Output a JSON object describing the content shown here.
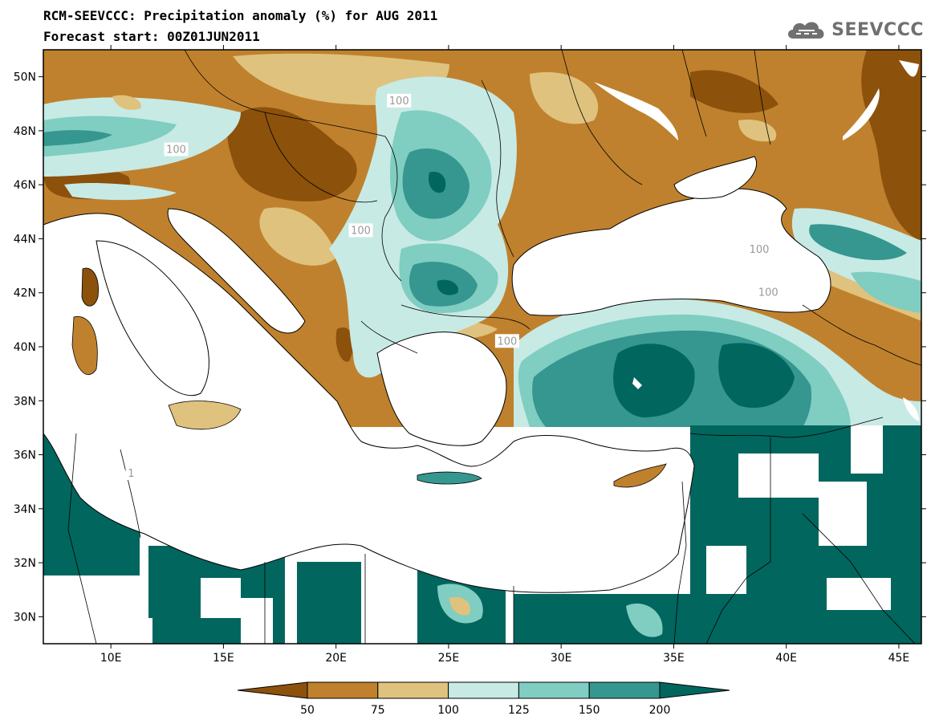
{
  "header": {
    "title_line1": "RCM-SEEVCCC: Precipitation anomaly (%) for AUG 2011",
    "title_line2": "Forecast start: 00Z01JUN2011",
    "logo_text": "SEEVCCC"
  },
  "map": {
    "lon_range": [
      7,
      46
    ],
    "lat_range": [
      29,
      51
    ],
    "lat_ticks": [
      {
        "value": 50,
        "label": "50N"
      },
      {
        "value": 48,
        "label": "48N"
      },
      {
        "value": 46,
        "label": "46N"
      },
      {
        "value": 44,
        "label": "44N"
      },
      {
        "value": 42,
        "label": "42N"
      },
      {
        "value": 40,
        "label": "40N"
      },
      {
        "value": 38,
        "label": "38N"
      },
      {
        "value": 36,
        "label": "36N"
      },
      {
        "value": 34,
        "label": "34N"
      },
      {
        "value": 32,
        "label": "32N"
      },
      {
        "value": 30,
        "label": "30N"
      }
    ],
    "lon_ticks": [
      {
        "value": 10,
        "label": "10E"
      },
      {
        "value": 15,
        "label": "15E"
      },
      {
        "value": 20,
        "label": "20E"
      },
      {
        "value": 25,
        "label": "25E"
      },
      {
        "value": 30,
        "label": "30E"
      },
      {
        "value": 35,
        "label": "35E"
      },
      {
        "value": 40,
        "label": "40E"
      },
      {
        "value": 45,
        "label": "45E"
      }
    ],
    "contour_labels": [
      {
        "text": "100",
        "lon": 22.8,
        "lat": 49.1
      },
      {
        "text": "100",
        "lon": 12.9,
        "lat": 47.3
      },
      {
        "text": "100",
        "lon": 21.1,
        "lat": 44.3
      },
      {
        "text": "100",
        "lon": 27.6,
        "lat": 40.2
      },
      {
        "text": "100",
        "lon": 38.8,
        "lat": 43.6
      },
      {
        "text": "100",
        "lon": 39.2,
        "lat": 42.0
      },
      {
        "text": "1",
        "lon": 10.9,
        "lat": 35.3
      }
    ]
  },
  "colorbar": {
    "colors": [
      "#8c510a",
      "#bf812d",
      "#dfc27d",
      "#c7eae5",
      "#80cdc1",
      "#35978f",
      "#01665e"
    ],
    "labels": [
      "50",
      "75",
      "100",
      "125",
      "150",
      "200"
    ]
  }
}
